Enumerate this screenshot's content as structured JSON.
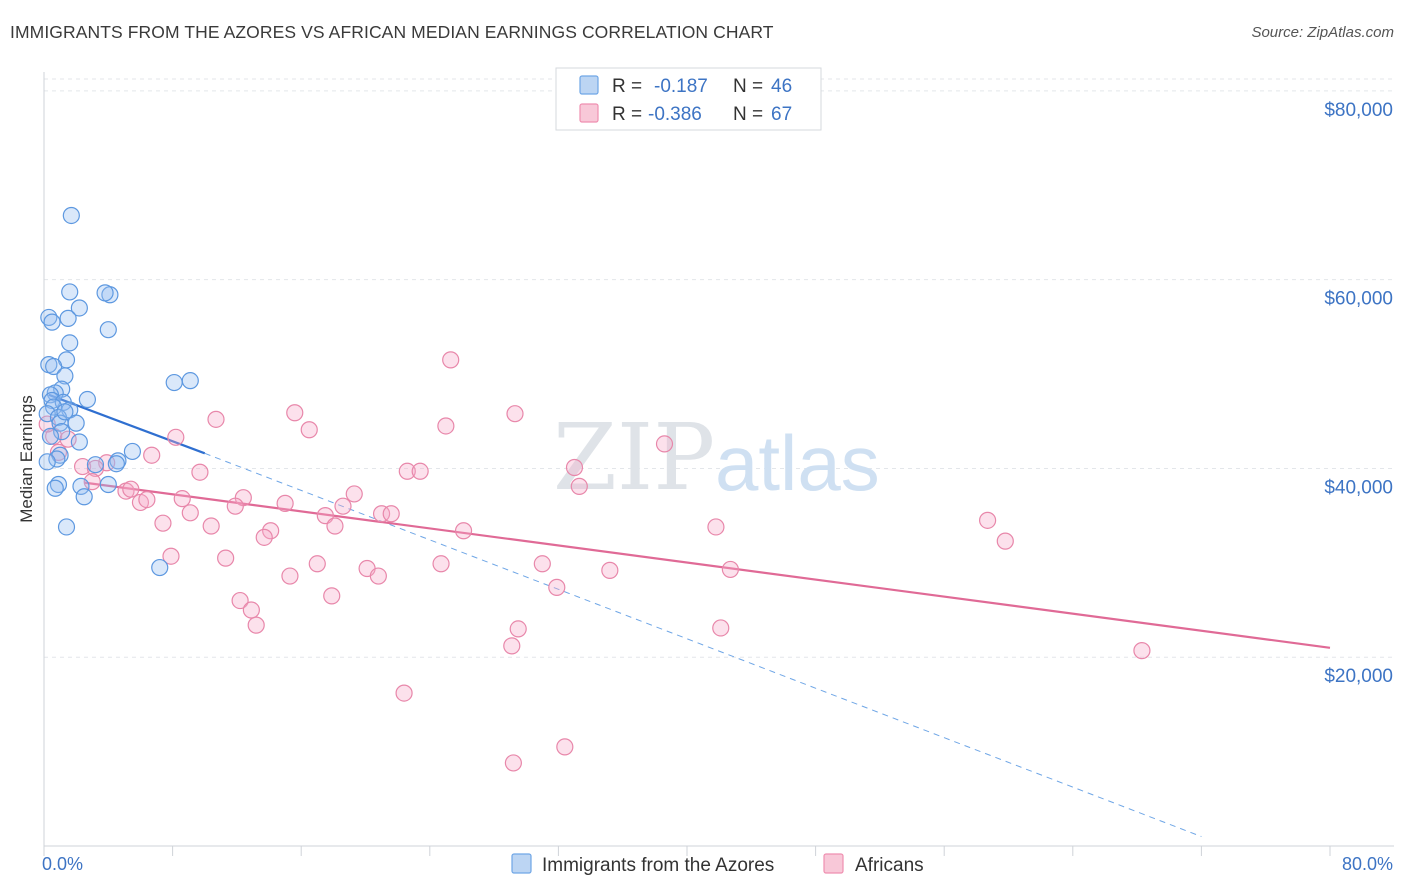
{
  "title": "IMMIGRANTS FROM THE AZORES VS AFRICAN MEDIAN EARNINGS CORRELATION CHART",
  "source": "Source: ZipAtlas.com",
  "watermark": {
    "zip": "ZIP",
    "atlas": "atlas"
  },
  "legend_top": [
    {
      "r_label": "R =",
      "r_value": "-0.187",
      "n_label": "N =",
      "n_value": "46",
      "color": "#6fa6e6"
    },
    {
      "r_label": "R =",
      "r_value": "-0.386",
      "n_label": "N =",
      "n_value": "67",
      "color": "#ef8fb0"
    }
  ],
  "chart_data": {
    "type": "scatter",
    "title": "IMMIGRANTS FROM THE AZORES VS AFRICAN MEDIAN EARNINGS CORRELATION CHART",
    "xlabel": "",
    "ylabel": "Median Earnings",
    "xlim": [
      0,
      80
    ],
    "ylim": [
      0,
      82000
    ],
    "x_tick_labels": [
      "0.0%",
      "80.0%"
    ],
    "y_ticks": [
      20000,
      40000,
      60000,
      80000
    ],
    "y_tick_labels": [
      "$20,000",
      "$40,000",
      "$60,000",
      "$80,000"
    ],
    "grid": true,
    "legend_position": "top-center",
    "series": [
      {
        "name": "Immigrants from the Azores",
        "color": "#6fa6e6",
        "trend": {
          "x": [
            0.3,
            10
          ],
          "y": [
            47800,
            41600
          ],
          "dashed_extension_to": [
            72,
            1000
          ]
        },
        "points": [
          [
            1.7,
            66800
          ],
          [
            1.6,
            58700
          ],
          [
            4.1,
            58400
          ],
          [
            3.8,
            58600
          ],
          [
            2.2,
            57000
          ],
          [
            0.3,
            56000
          ],
          [
            0.5,
            55500
          ],
          [
            1.5,
            55900
          ],
          [
            4.0,
            54700
          ],
          [
            1.6,
            53300
          ],
          [
            1.4,
            51500
          ],
          [
            0.3,
            51000
          ],
          [
            0.6,
            50800
          ],
          [
            1.3,
            49800
          ],
          [
            8.1,
            49100
          ],
          [
            9.1,
            49300
          ],
          [
            1.1,
            48400
          ],
          [
            0.7,
            48000
          ],
          [
            0.4,
            47800
          ],
          [
            0.5,
            47200
          ],
          [
            2.7,
            47300
          ],
          [
            1.2,
            47000
          ],
          [
            0.6,
            46500
          ],
          [
            1.6,
            46200
          ],
          [
            0.2,
            45800
          ],
          [
            0.9,
            45400
          ],
          [
            1.0,
            44800
          ],
          [
            2.0,
            44800
          ],
          [
            1.1,
            43900
          ],
          [
            0.4,
            43400
          ],
          [
            2.2,
            42800
          ],
          [
            1.0,
            41400
          ],
          [
            5.5,
            41800
          ],
          [
            0.8,
            41000
          ],
          [
            4.6,
            40800
          ],
          [
            3.2,
            40400
          ],
          [
            4.5,
            40500
          ],
          [
            4.0,
            38300
          ],
          [
            0.9,
            38300
          ],
          [
            2.3,
            38100
          ],
          [
            0.7,
            37900
          ],
          [
            2.5,
            37000
          ],
          [
            1.4,
            33800
          ],
          [
            7.2,
            29500
          ],
          [
            0.2,
            40700
          ],
          [
            1.3,
            46000
          ]
        ]
      },
      {
        "name": "Africans",
        "color": "#ef8fb0",
        "trend": {
          "x": [
            2.5,
            80
          ],
          "y": [
            38500,
            21000
          ]
        },
        "points": [
          [
            25.3,
            51500
          ],
          [
            10.7,
            45200
          ],
          [
            15.6,
            45900
          ],
          [
            29.3,
            45800
          ],
          [
            16.5,
            44100
          ],
          [
            25.0,
            44500
          ],
          [
            8.2,
            43300
          ],
          [
            38.6,
            42600
          ],
          [
            0.6,
            43400
          ],
          [
            1.5,
            43100
          ],
          [
            0.9,
            41700
          ],
          [
            6.7,
            41400
          ],
          [
            3.9,
            40600
          ],
          [
            2.4,
            40200
          ],
          [
            3.2,
            40000
          ],
          [
            9.7,
            39600
          ],
          [
            22.6,
            39700
          ],
          [
            23.4,
            39700
          ],
          [
            33.0,
            40100
          ],
          [
            33.3,
            38100
          ],
          [
            5.1,
            37600
          ],
          [
            5.4,
            37800
          ],
          [
            8.6,
            36800
          ],
          [
            12.4,
            36900
          ],
          [
            19.3,
            37300
          ],
          [
            11.9,
            36000
          ],
          [
            15.0,
            36300
          ],
          [
            18.6,
            36000
          ],
          [
            6.0,
            36400
          ],
          [
            6.4,
            36700
          ],
          [
            9.1,
            35300
          ],
          [
            17.5,
            35000
          ],
          [
            21.0,
            35200
          ],
          [
            21.6,
            35200
          ],
          [
            18.1,
            33900
          ],
          [
            7.4,
            34200
          ],
          [
            10.4,
            33900
          ],
          [
            14.1,
            33400
          ],
          [
            26.1,
            33400
          ],
          [
            41.8,
            33800
          ],
          [
            58.7,
            34500
          ],
          [
            59.8,
            32300
          ],
          [
            13.7,
            32700
          ],
          [
            11.3,
            30500
          ],
          [
            7.9,
            30700
          ],
          [
            17.0,
            29900
          ],
          [
            24.7,
            29900
          ],
          [
            31.0,
            29900
          ],
          [
            20.1,
            29400
          ],
          [
            35.2,
            29200
          ],
          [
            42.7,
            29300
          ],
          [
            15.3,
            28600
          ],
          [
            20.8,
            28600
          ],
          [
            31.9,
            27400
          ],
          [
            17.9,
            26500
          ],
          [
            12.2,
            26000
          ],
          [
            12.9,
            25000
          ],
          [
            13.2,
            23400
          ],
          [
            29.5,
            23000
          ],
          [
            42.1,
            23100
          ],
          [
            29.1,
            21200
          ],
          [
            68.3,
            20700
          ],
          [
            22.4,
            16200
          ],
          [
            32.4,
            10500
          ],
          [
            29.2,
            8800
          ],
          [
            0.2,
            44700
          ],
          [
            3.0,
            38600
          ]
        ]
      }
    ]
  }
}
